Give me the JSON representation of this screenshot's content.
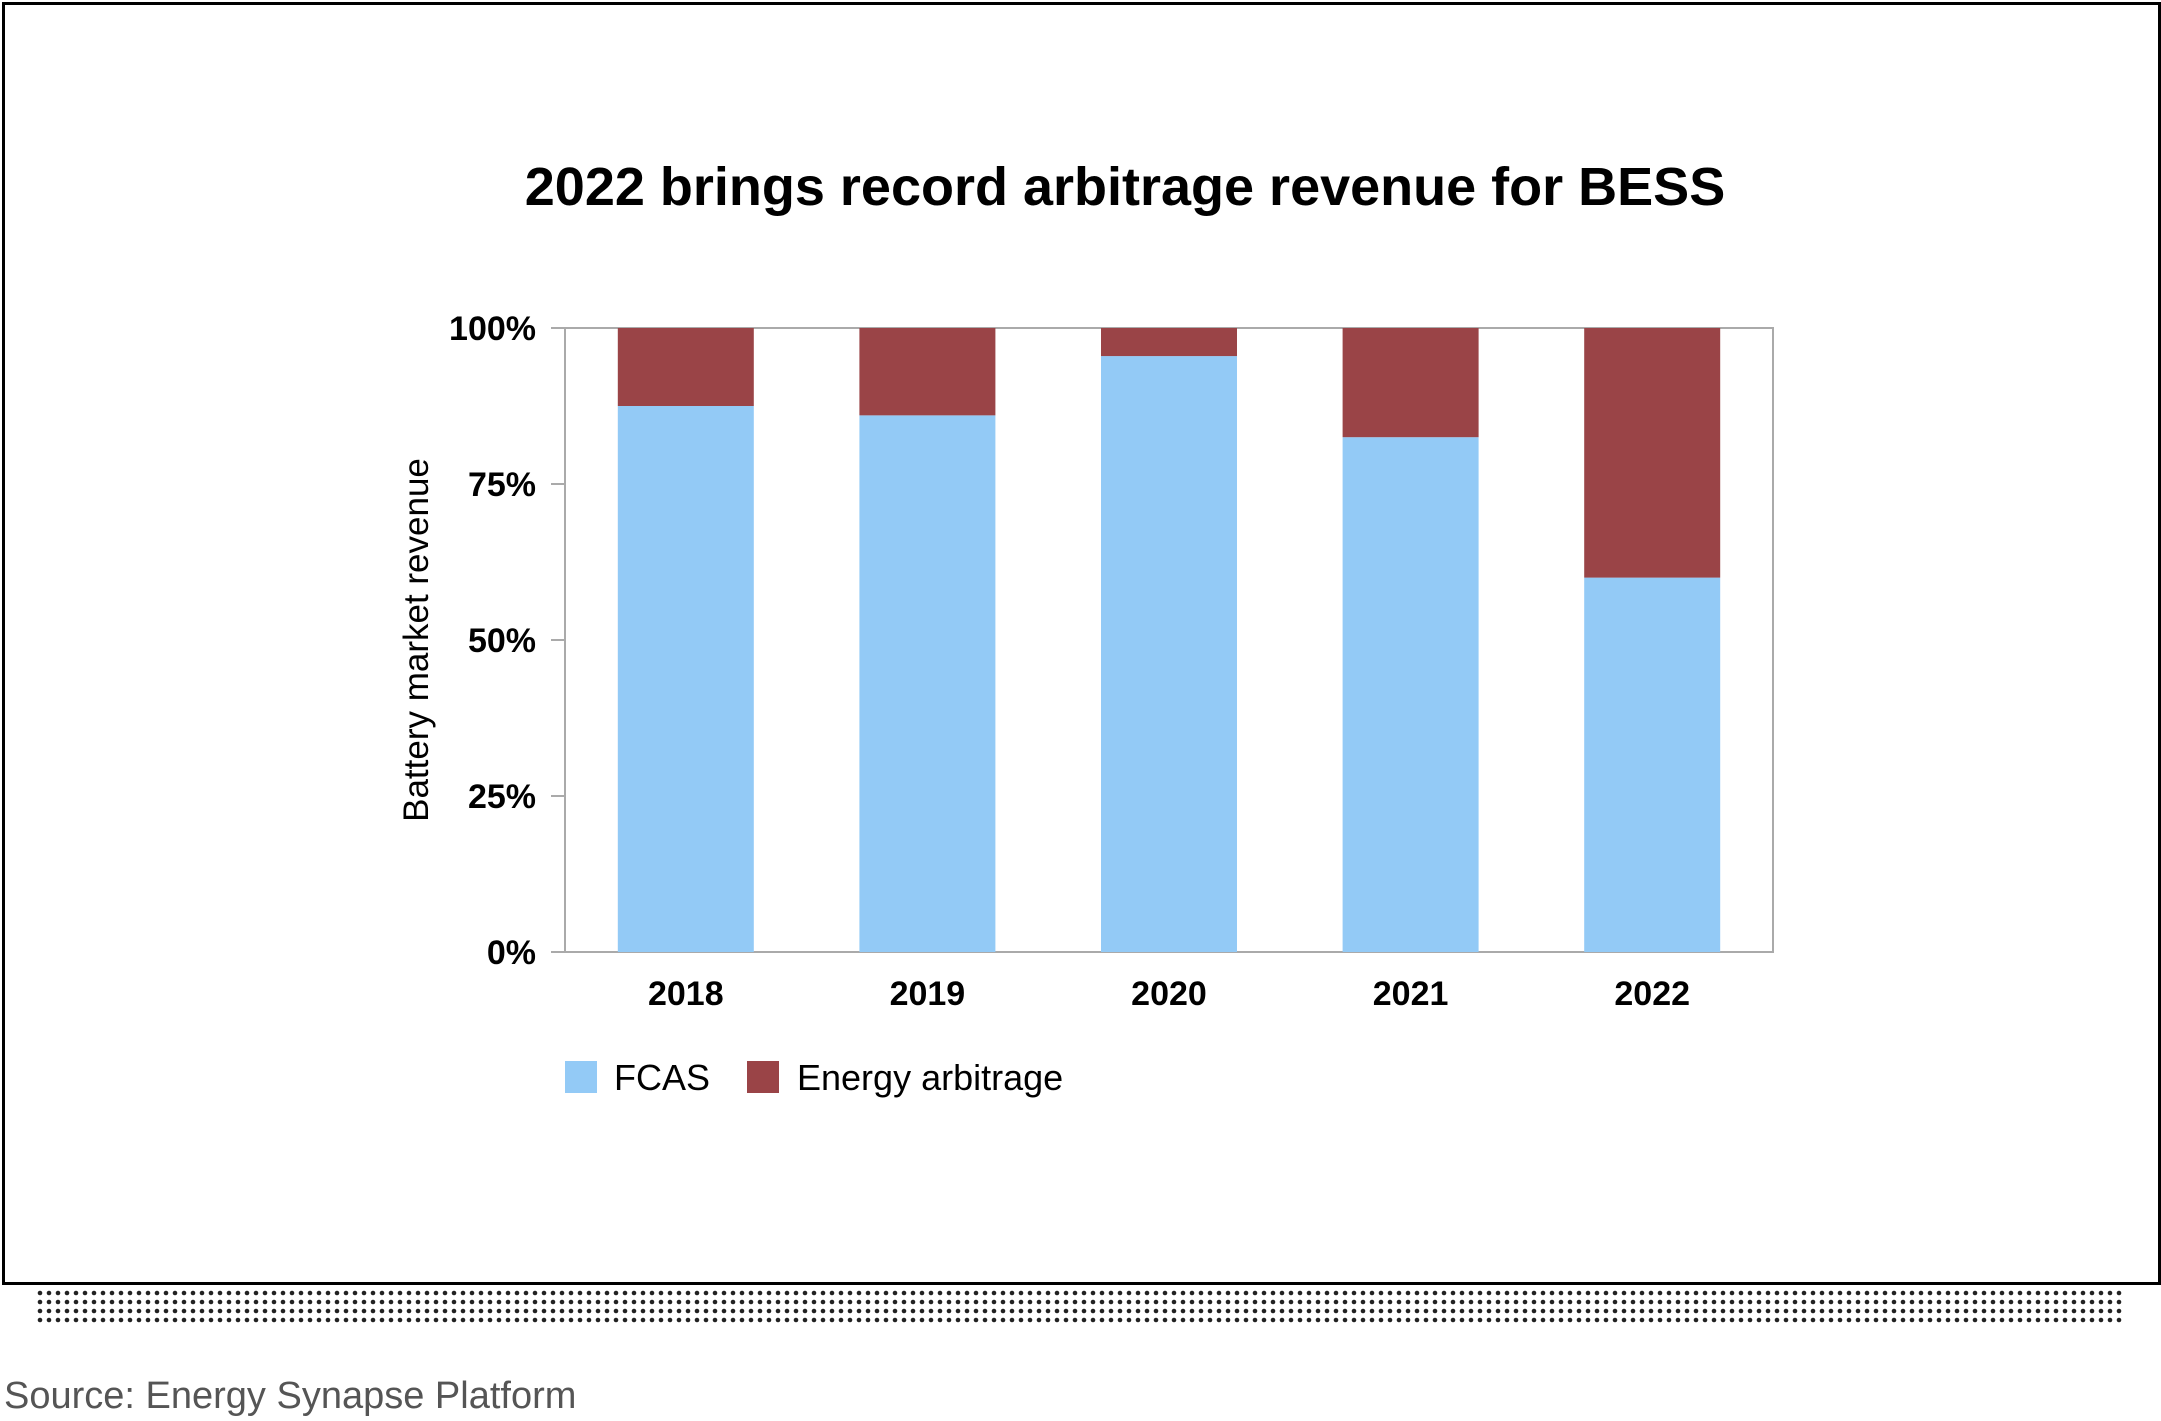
{
  "chart_data": {
    "type": "bar",
    "stacked": true,
    "title": "2022 brings record arbitrage revenue for BESS",
    "xlabel": "",
    "ylabel": "Battery market revenue",
    "categories": [
      "2018",
      "2019",
      "2020",
      "2021",
      "2022"
    ],
    "ylim": [
      0,
      100
    ],
    "yticks": [
      0,
      25,
      50,
      75,
      100
    ],
    "ytick_labels": [
      "0%",
      "25%",
      "50%",
      "75%",
      "100%"
    ],
    "series": [
      {
        "name": "FCAS",
        "values": [
          87.5,
          86,
          95.5,
          82.5,
          60
        ],
        "color": "#93caf6"
      },
      {
        "name": "Energy arbitrage",
        "values": [
          12.5,
          14,
          4.5,
          17.5,
          40
        ],
        "color": "#9a4447"
      }
    ],
    "legend_position": "bottom-left",
    "grid": false
  },
  "footer": {
    "source": "Source: Energy Synapse Platform"
  },
  "colors": {
    "frame": "#000000",
    "axis": "#aaaaaa",
    "dots": "#222222",
    "source_text": "#555555"
  }
}
